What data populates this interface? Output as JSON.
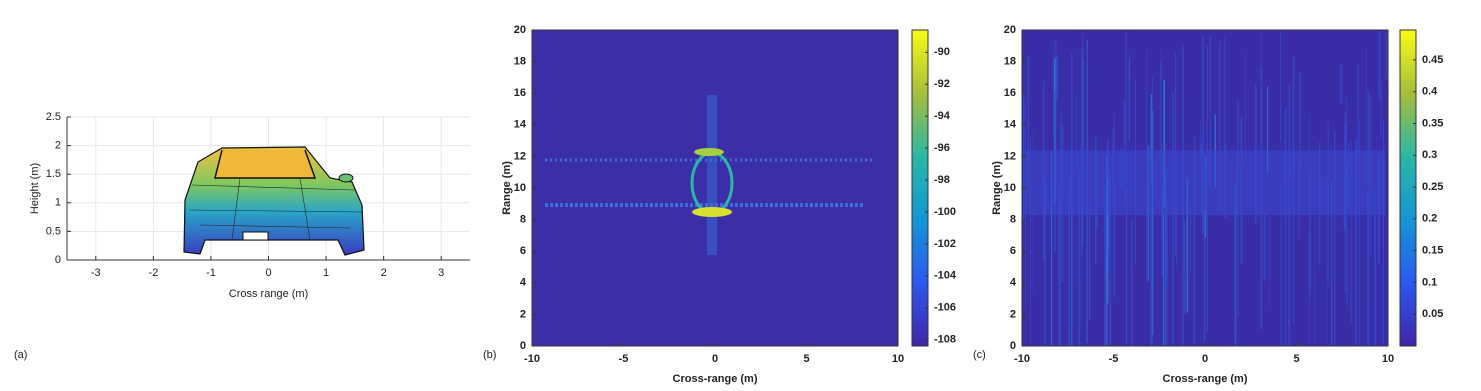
{
  "chart_data": [
    {
      "type": "mesh",
      "label": "(a)",
      "xlabel": "Cross range (m)",
      "ylabel": "Height (m)",
      "xlim": [
        -3.5,
        3.5
      ],
      "ylim": [
        0,
        2.5
      ],
      "xticks": [
        -3,
        -2,
        -1,
        0,
        1,
        2,
        3
      ],
      "yticks": [
        0,
        0.5,
        1,
        1.5,
        2,
        2.5
      ],
      "grid": true
    },
    {
      "type": "heatmap",
      "label": "(b)",
      "xlabel": "Cross-range (m)",
      "ylabel": "Range (m)",
      "xlim": [
        -10,
        10
      ],
      "ylim": [
        0,
        20
      ],
      "xticks": [
        -10,
        -5,
        0,
        5,
        10
      ],
      "yticks": [
        0,
        2,
        4,
        6,
        8,
        10,
        12,
        14,
        16,
        18,
        20
      ],
      "grid": false,
      "colorbar": {
        "lim": [
          -108.4,
          -88.6
        ],
        "ticks": [
          -108,
          -106,
          -104,
          -102,
          -100,
          -98,
          -96,
          -94,
          -92,
          -90
        ]
      }
    },
    {
      "type": "heatmap",
      "label": "(c)",
      "xlabel": "Cross-range (m)",
      "ylabel": "Range (m)",
      "xlim": [
        -10,
        10
      ],
      "ylim": [
        0,
        20
      ],
      "xticks": [
        -10,
        -5,
        0,
        5,
        10
      ],
      "yticks": [
        0,
        2,
        4,
        6,
        8,
        10,
        12,
        14,
        16,
        18,
        20
      ],
      "grid": false,
      "colorbar": {
        "lim": [
          0,
          0.497
        ],
        "ticks": [
          0.05,
          0.1,
          0.15,
          0.2,
          0.25,
          0.3,
          0.35,
          0.4,
          0.45
        ]
      }
    }
  ]
}
